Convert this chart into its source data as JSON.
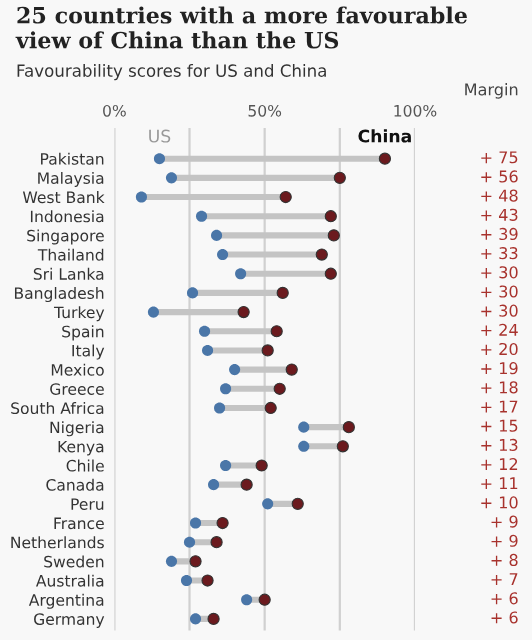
{
  "chart_data": {
    "type": "scatter",
    "title": "25 countries with a more favourable view of China than the US",
    "subtitle": "Favourability scores for US and China",
    "categories": [
      "Pakistan",
      "Malaysia",
      "West Bank",
      "Indonesia",
      "Singapore",
      "Thailand",
      "Sri Lanka",
      "Bangladesh",
      "Turkey",
      "Spain",
      "Italy",
      "Mexico",
      "Greece",
      "South Africa",
      "Nigeria",
      "Kenya",
      "Chile",
      "Canada",
      "Peru",
      "France",
      "Netherlands",
      "Sweden",
      "Australia",
      "Argentina",
      "Germany"
    ],
    "orientation": "horizontal",
    "series": [
      {
        "name": "US",
        "color": "#4a76a8",
        "values": [
          15,
          19,
          9,
          29,
          34,
          36,
          42,
          26,
          13,
          30,
          31,
          40,
          37,
          35,
          63,
          63,
          37,
          33,
          51,
          27,
          25,
          19,
          24,
          44,
          27
        ]
      },
      {
        "name": "China",
        "color": "#6b1a1e",
        "values": [
          90,
          75,
          57,
          72,
          73,
          69,
          72,
          56,
          43,
          54,
          51,
          59,
          55,
          52,
          78,
          76,
          49,
          44,
          61,
          36,
          34,
          27,
          31,
          50,
          33
        ]
      }
    ],
    "xlim": [
      0,
      100
    ],
    "xticks": [
      {
        "value": 0,
        "label": "0%"
      },
      {
        "value": 25,
        "label": null
      },
      {
        "value": 50,
        "label": "50%"
      },
      {
        "value": 75,
        "label": null
      },
      {
        "value": 100,
        "label": "100%"
      }
    ],
    "grid": "x",
    "legend": false,
    "marker": "circle",
    "annotations": [
      "Margin",
      "+ 75",
      "+ 56",
      "+ 48",
      "+ 43",
      "+ 39",
      "+ 33",
      "+ 30",
      "+ 30",
      "+ 30",
      "+ 24",
      "+ 20",
      "+ 19",
      "+ 18",
      "+ 17",
      "+ 15",
      "+ 13",
      "+ 12",
      "+ 11",
      "+ 10",
      "+ 9",
      "+ 9",
      "+ 8",
      "+ 7",
      "+ 6",
      "+ 6"
    ]
  }
}
